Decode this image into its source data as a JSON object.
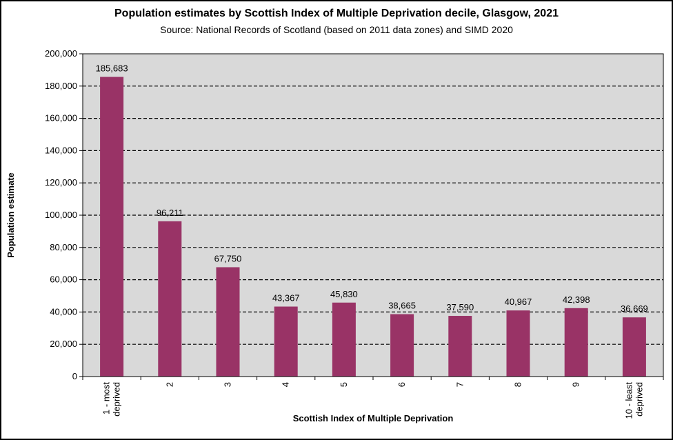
{
  "chart_data": {
    "type": "bar",
    "title": "Population estimates by Scottish Index of Multiple Deprivation decile, Glasgow, 2021",
    "subtitle": "Source: National Records of Scotland (based on 2011 data zones) and SIMD 2020",
    "xlabel": "Scottish Index of Multiple Deprivation",
    "ylabel": "Population estimate",
    "categories": [
      [
        "1 - most",
        "deprived"
      ],
      [
        "2"
      ],
      [
        "3"
      ],
      [
        "4"
      ],
      [
        "5"
      ],
      [
        "6"
      ],
      [
        "7"
      ],
      [
        "8"
      ],
      [
        "9"
      ],
      [
        "10 - least",
        "deprived"
      ]
    ],
    "values": [
      185683,
      96211,
      67750,
      43367,
      45830,
      38665,
      37590,
      40967,
      42398,
      36669
    ],
    "value_labels": [
      "185,683",
      "96,211",
      "67,750",
      "43,367",
      "45,830",
      "38,665",
      "37,590",
      "40,967",
      "42,398",
      "36,669"
    ],
    "ylim": [
      0,
      200000
    ],
    "yticks": [
      0,
      20000,
      40000,
      60000,
      80000,
      100000,
      120000,
      140000,
      160000,
      180000,
      200000
    ],
    "ytick_labels": [
      "0",
      "20,000",
      "40,000",
      "60,000",
      "80,000",
      "100,000",
      "120,000",
      "140,000",
      "160,000",
      "180,000",
      "200,000"
    ],
    "grid": "horizontal-dashed",
    "legend": "none",
    "colors": {
      "bar": "#993366",
      "plot_bg": "#d9d9d9",
      "grid": "#000000"
    }
  }
}
